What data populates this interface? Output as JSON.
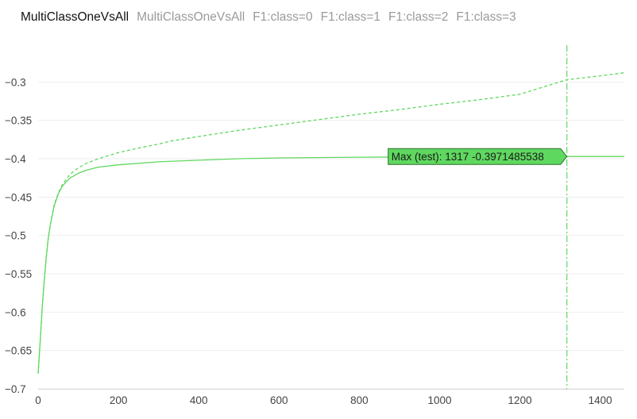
{
  "tabs": [
    {
      "label": "MultiClassOneVsAll",
      "active": true
    },
    {
      "label": "MultiClassOneVsAll",
      "active": false
    },
    {
      "label": "F1:class=0",
      "active": false
    },
    {
      "label": "F1:class=1",
      "active": false
    },
    {
      "label": "F1:class=2",
      "active": false
    },
    {
      "label": "F1:class=3",
      "active": false
    }
  ],
  "colors": {
    "series": "#5fd85f",
    "annotation_fill": "#5fd85f",
    "annotation_border": "#2a6e2a",
    "grid": "#eeeeee"
  },
  "chart_data": {
    "type": "line",
    "xlim": [
      0,
      1460
    ],
    "ylim": [
      -0.7,
      -0.25
    ],
    "x_ticks": [
      0,
      200,
      400,
      600,
      800,
      1000,
      1200,
      1400
    ],
    "x_tick_labels": [
      "0",
      "200",
      "400",
      "600",
      "800",
      "1000",
      "1200",
      "1400"
    ],
    "y_ticks": [
      -0.7,
      -0.65,
      -0.6,
      -0.55,
      -0.5,
      -0.45,
      -0.4,
      -0.35,
      -0.3
    ],
    "y_tick_labels": [
      "−0.7",
      "−0.65",
      "−0.6",
      "−0.55",
      "−0.5",
      "−0.45",
      "−0.4",
      "−0.35",
      "−0.3"
    ],
    "grid": true,
    "series": [
      {
        "role": "test",
        "style": "solid",
        "points": [
          [
            0,
            -0.68
          ],
          [
            5,
            -0.64
          ],
          [
            10,
            -0.595
          ],
          [
            15,
            -0.56
          ],
          [
            20,
            -0.53
          ],
          [
            25,
            -0.505
          ],
          [
            30,
            -0.487
          ],
          [
            40,
            -0.462
          ],
          [
            50,
            -0.446
          ],
          [
            60,
            -0.436
          ],
          [
            70,
            -0.43
          ],
          [
            80,
            -0.425
          ],
          [
            100,
            -0.419
          ],
          [
            120,
            -0.415
          ],
          [
            150,
            -0.411
          ],
          [
            200,
            -0.408
          ],
          [
            300,
            -0.404
          ],
          [
            400,
            -0.402
          ],
          [
            500,
            -0.4
          ],
          [
            600,
            -0.399
          ],
          [
            800,
            -0.398
          ],
          [
            1000,
            -0.3975
          ],
          [
            1200,
            -0.3972
          ],
          [
            1317,
            -0.3971485538
          ],
          [
            1460,
            -0.3971
          ]
        ]
      },
      {
        "role": "learn",
        "style": "dashed",
        "points": [
          [
            0,
            -0.68
          ],
          [
            5,
            -0.64
          ],
          [
            10,
            -0.595
          ],
          [
            15,
            -0.56
          ],
          [
            20,
            -0.53
          ],
          [
            25,
            -0.505
          ],
          [
            30,
            -0.487
          ],
          [
            40,
            -0.46
          ],
          [
            50,
            -0.445
          ],
          [
            60,
            -0.434
          ],
          [
            70,
            -0.427
          ],
          [
            80,
            -0.42
          ],
          [
            100,
            -0.412
          ],
          [
            120,
            -0.406
          ],
          [
            150,
            -0.4
          ],
          [
            200,
            -0.392
          ],
          [
            250,
            -0.386
          ],
          [
            300,
            -0.381
          ],
          [
            330,
            -0.377
          ],
          [
            400,
            -0.371
          ],
          [
            500,
            -0.363
          ],
          [
            600,
            -0.356
          ],
          [
            700,
            -0.349
          ],
          [
            800,
            -0.342
          ],
          [
            900,
            -0.336
          ],
          [
            1000,
            -0.329
          ],
          [
            1100,
            -0.323
          ],
          [
            1200,
            -0.316
          ],
          [
            1317,
            -0.297
          ],
          [
            1400,
            -0.292
          ],
          [
            1460,
            -0.288
          ]
        ]
      }
    ],
    "vertical_marker": {
      "x": 1317,
      "style": "dashdot"
    },
    "annotation": {
      "text": "Max (test): 1317 -0.3971485538",
      "x": 1317,
      "y": -0.3971485538
    }
  }
}
